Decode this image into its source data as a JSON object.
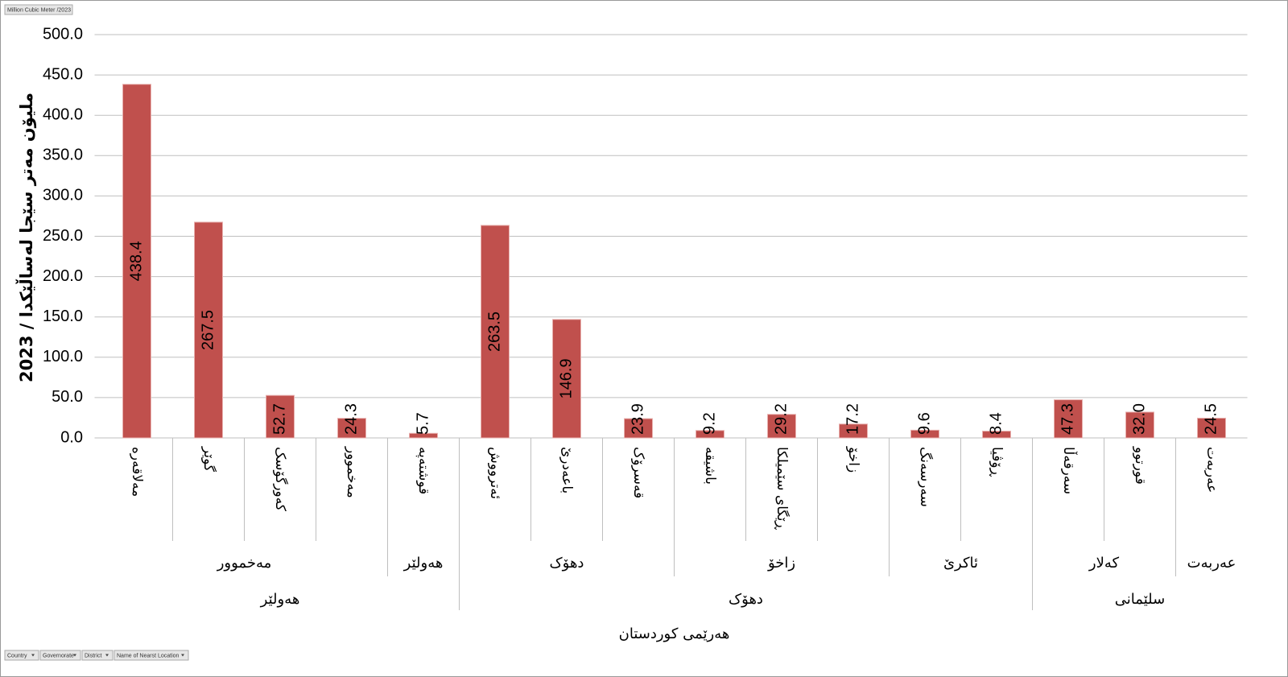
{
  "chart_data": {
    "type": "bar",
    "field_button": "Million Cubic Meter /2023",
    "y_label": "ملیۆن مەتر سێجا  لەساڵێکدا / 2023",
    "groups": [
      {
        "label": "هەرێمی کوردستان",
        "children": [
          {
            "label": "هەولێر",
            "children": [
              {
                "label": "مەخموور",
                "categories": [
                  "مەلاقەرە",
                  "گوێر",
                  "کەورگۆسک",
                  "مەخموور"
                ]
              },
              {
                "label": "هەولێر",
                "categories": [
                  "قوشتەپە"
                ]
              }
            ]
          },
          {
            "label": "دهۆک",
            "children": [
              {
                "label": "دهۆک",
                "categories": [
                  "ئەترووش",
                  "باعەدرێ",
                  "قەسرۆک"
                ]
              },
              {
                "label": "زاخۆ",
                "categories": [
                  "باشیقە",
                  "ڕێگای سێمیلکا",
                  "زاخۆ"
                ]
              },
              {
                "label": "ئاکرێ",
                "categories": [
                  "سەرسەنگ",
                  "ڕۆڤیا"
                ]
              }
            ]
          },
          {
            "label": "سلێمانی",
            "children": [
              {
                "label": "کەلار",
                "categories": [
                  "سەرقەڵا",
                  "قورتوو"
                ]
              },
              {
                "label": "عەربەت",
                "categories": [
                  "عەربەت"
                ]
              }
            ]
          }
        ]
      }
    ],
    "values": [
      438.4,
      267.5,
      52.7,
      24.3,
      5.7,
      263.5,
      146.9,
      23.9,
      9.2,
      29.2,
      17.2,
      9.6,
      8.4,
      47.3,
      32.0,
      24.5
    ],
    "value_labels": [
      "438.4",
      "267.5",
      "52.7",
      "24.3",
      "5.7",
      "263.5",
      "146.9",
      "23.9",
      "9.2",
      "29.2",
      "17.2",
      "9.6",
      "8.4",
      "47.3",
      "32.0",
      "24.5"
    ],
    "color": "#c0504d",
    "ylim": [
      0,
      500
    ],
    "yticks": [
      {
        "value": 0,
        "label": "0.0"
      },
      {
        "value": 50,
        "label": "50.0"
      },
      {
        "value": 100,
        "label": "100.0"
      },
      {
        "value": 150,
        "label": "150.0"
      },
      {
        "value": 200,
        "label": "200.0"
      },
      {
        "value": 250,
        "label": "250.0"
      },
      {
        "value": 300,
        "label": "300.0"
      },
      {
        "value": 350,
        "label": "350.0"
      },
      {
        "value": 400,
        "label": "400.0"
      },
      {
        "value": 450,
        "label": "450.0"
      },
      {
        "value": 500,
        "label": "500.0"
      }
    ],
    "grid": true,
    "axis_field_buttons": [
      "Country",
      "Governorate",
      "District",
      "Name of Nearst Location"
    ]
  }
}
